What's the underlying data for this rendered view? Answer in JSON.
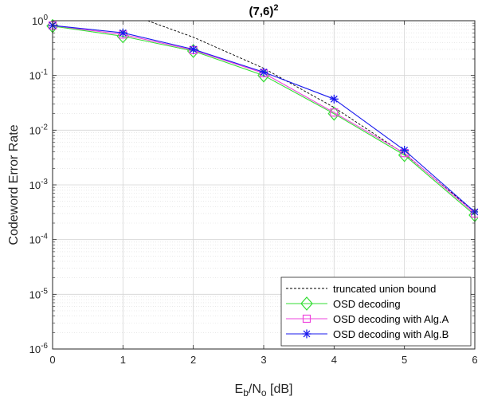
{
  "chart_data": {
    "type": "line",
    "title_base": "(7,6)",
    "title_sup": "2",
    "xlabel": {
      "main": "E",
      "sub1": "b",
      "mid": "/N",
      "sub2": "o",
      "tail": " [dB]"
    },
    "ylabel": "Codeword Error Rate",
    "x": [
      0,
      1,
      2,
      3,
      4,
      5,
      6
    ],
    "xlim": [
      0,
      6
    ],
    "ylim": [
      1e-06,
      1
    ],
    "yscale": "log",
    "x_tick_labels": [
      "0",
      "1",
      "2",
      "3",
      "4",
      "5",
      "6"
    ],
    "y_ticks": [
      {
        "base": "10",
        "exp": "0"
      },
      {
        "base": "10",
        "exp": "-1"
      },
      {
        "base": "10",
        "exp": "-2"
      },
      {
        "base": "10",
        "exp": "-3"
      },
      {
        "base": "10",
        "exp": "-4"
      },
      {
        "base": "10",
        "exp": "-5"
      },
      {
        "base": "10",
        "exp": "-6"
      }
    ],
    "grid": true,
    "minor_grid": true,
    "legend_position": "bottom-right",
    "series": [
      {
        "name": "truncated union bound",
        "color": "#000000",
        "style": "dashed",
        "marker": "none",
        "x": [
          1.35,
          2,
          3,
          4,
          5,
          6
        ],
        "values": [
          1.0,
          0.5,
          0.135,
          0.026,
          0.0037,
          0.00032
        ]
      },
      {
        "name": "OSD decoding",
        "color": "#33dd33",
        "style": "solid",
        "marker": "diamond",
        "x": [
          0,
          1,
          2,
          3,
          4,
          5,
          6
        ],
        "values": [
          0.8,
          0.52,
          0.28,
          0.1,
          0.02,
          0.0035,
          0.00028
        ]
      },
      {
        "name": "OSD decoding with Alg.A",
        "color": "#ee44dd",
        "style": "solid",
        "marker": "square",
        "x": [
          0,
          1,
          2,
          3,
          4,
          5,
          6
        ],
        "values": [
          0.82,
          0.56,
          0.29,
          0.11,
          0.021,
          0.0038,
          0.0003
        ]
      },
      {
        "name": "OSD decoding with Alg.B",
        "color": "#1a1aee",
        "style": "solid",
        "marker": "star",
        "x": [
          0,
          1,
          2,
          3,
          4,
          5,
          6
        ],
        "values": [
          0.82,
          0.6,
          0.3,
          0.115,
          0.037,
          0.0043,
          0.00032
        ]
      }
    ]
  }
}
